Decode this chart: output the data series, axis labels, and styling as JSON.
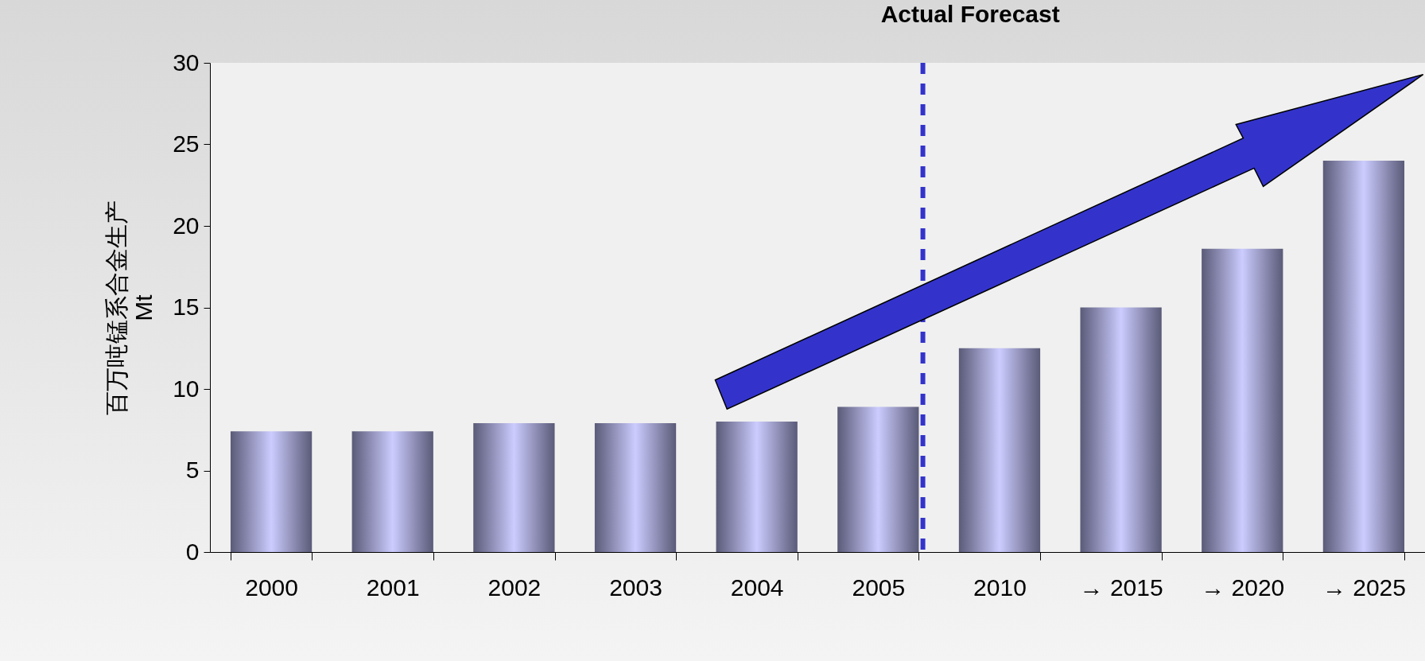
{
  "chart_data": {
    "type": "bar",
    "title": "Actual Forecast",
    "ylabel": "百万吨锰系合金生产\nMt",
    "categories": [
      "2000",
      "2001",
      "2002",
      "2003",
      "2004",
      "2005",
      "2010",
      "→ 2015",
      "→ 2020",
      "→ 2025"
    ],
    "values": [
      7.4,
      7.4,
      7.9,
      7.9,
      8.0,
      8.9,
      12.5,
      15.0,
      18.6,
      24.0
    ],
    "color": "#ccccff",
    "ylim": [
      0,
      30
    ],
    "yticks": [
      0,
      5,
      10,
      15,
      20,
      25,
      30
    ],
    "ref_lines": [
      {
        "axis": "x",
        "value": "2005",
        "color": "#3333cc",
        "line_style": "dashed"
      }
    ]
  }
}
